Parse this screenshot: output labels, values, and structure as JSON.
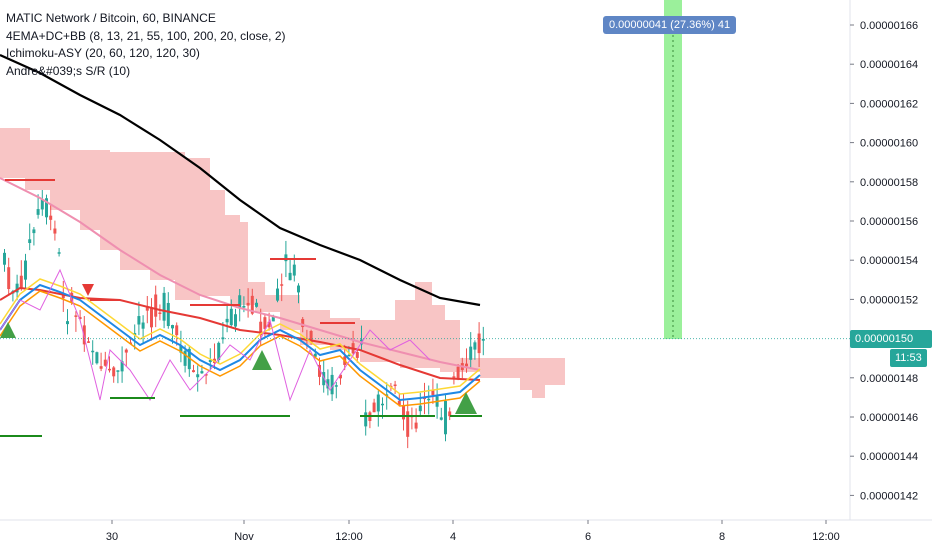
{
  "legend": {
    "title": "MATIC Network / Bitcoin, 60, BINANCE",
    "indicator_1": "4EMA+DC+BB (8, 13, 21, 55, 100, 200, 20, close, 2)",
    "indicator_2": "Ichimoku-ASY (20, 60, 120, 120, 30)",
    "indicator_3": "Andre&#039;s S/R (10)"
  },
  "price_axis": {
    "labels": [
      "0.00000166",
      "0.00000164",
      "0.00000162",
      "0.00000160",
      "0.00000158",
      "0.00000156",
      "0.00000154",
      "0.00000152",
      "0.00000150",
      "0.00000148",
      "0.00000146",
      "0.00000144",
      "0.00000142"
    ],
    "current_price": "0.00000150",
    "countdown": "11:53"
  },
  "time_axis": {
    "labels": [
      "30",
      "Nov",
      "12:00",
      "4",
      "6",
      "8",
      "12:00"
    ]
  },
  "measure": {
    "label": "0.00000041 (27.36%) 41"
  },
  "colors": {
    "cloud": "#f4a6a6",
    "ema_slow": "#000000",
    "pink_line": "#ef8fb0",
    "red_line": "#e53935",
    "blue_line": "#1e88e5",
    "orange_line": "#ff9800",
    "yellow_line": "#fdd835",
    "candle_up": "#26a69a",
    "candle_down": "#ef5350",
    "price_badge": "#26a69a",
    "measure_zone": "#90ee90",
    "sr_support": "#1b8a1b",
    "sr_resistance": "#e53935",
    "magenta_line": "#e060e0"
  },
  "chart_data": {
    "type": "candlestick",
    "title": "MATIC Network / Bitcoin, 60, BINANCE",
    "ylim": [
      1.41e-06,
      1.672e-06
    ],
    "x_labels": [
      "30",
      "Nov",
      "12:00",
      "4",
      "6",
      "8",
      "12:00"
    ],
    "ema200_line": [
      1.63e-06,
      1.619e-06,
      1.608e-06,
      1.597e-06,
      1.585e-06,
      1.572e-06,
      1.56e-06,
      1.553e-06,
      1.545e-06,
      1.536e-06,
      1.528e-06,
      1.52e-06,
      1.516e-06
    ],
    "measure_range": [
      "0.00000150",
      "0.00000191"
    ],
    "price_sample_closes": [
      1.48e-06,
      1.53e-06,
      1.51e-06,
      1.5e-06,
      1.49e-06,
      1.495e-06,
      1.48e-06,
      1.51e-06,
      1.5e-06,
      1.49e-06,
      1.47e-06,
      1.48e-06,
      1.5e-06
    ]
  }
}
